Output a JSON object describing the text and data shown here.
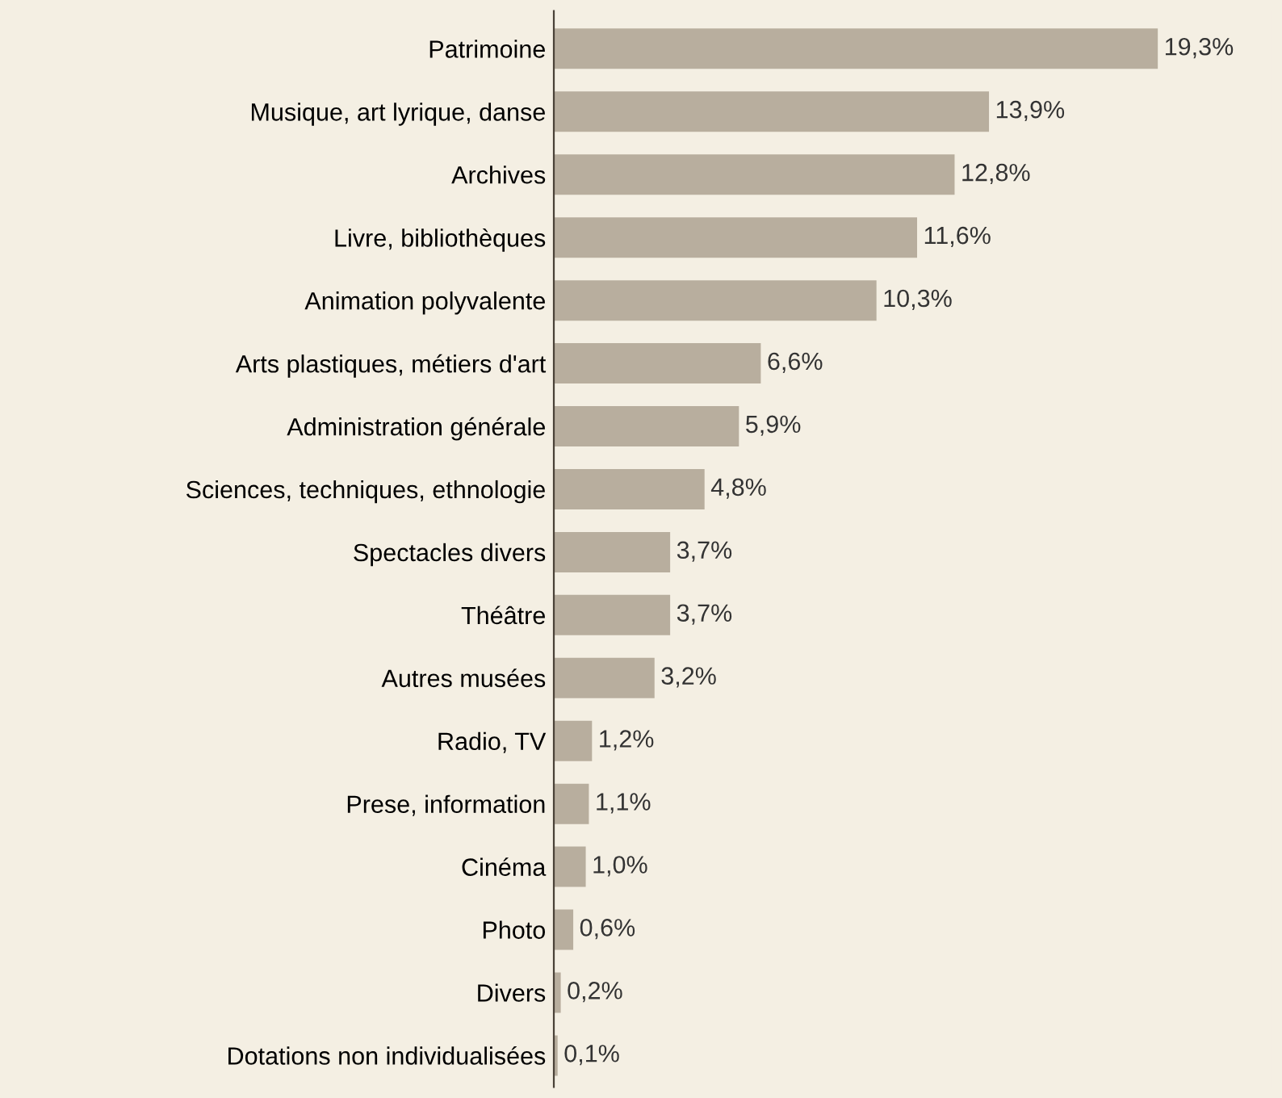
{
  "chart_data": {
    "type": "bar",
    "orientation": "horizontal",
    "categories": [
      "Patrimoine",
      "Musique, art lyrique, danse",
      "Archives",
      "Livre, bibliothèques",
      "Animation polyvalente",
      "Arts plastiques, métiers d'art",
      "Administration générale",
      "Sciences, techniques, ethnologie",
      "Spectacles divers",
      "Théâtre",
      "Autres musées",
      "Radio, TV",
      "Prese, information",
      "Cinéma",
      "Photo",
      "Divers",
      "Dotations non individualisées"
    ],
    "values": [
      19.3,
      13.9,
      12.8,
      11.6,
      10.3,
      6.6,
      5.9,
      4.8,
      3.7,
      3.7,
      3.2,
      1.2,
      1.1,
      1.0,
      0.6,
      0.2,
      0.1
    ],
    "value_labels": [
      "19,3%",
      "13,9%",
      "12,8%",
      "11,6%",
      "10,3%",
      "6,6%",
      "5,9%",
      "4,8%",
      "3,7%",
      "3,7%",
      "3,2%",
      "1,2%",
      "1,1%",
      "1,0%",
      "0,6%",
      "0,2%",
      "0,1%"
    ],
    "color": "#b8ae9e",
    "tick_labels": "y",
    "grid": false,
    "legend": false
  }
}
